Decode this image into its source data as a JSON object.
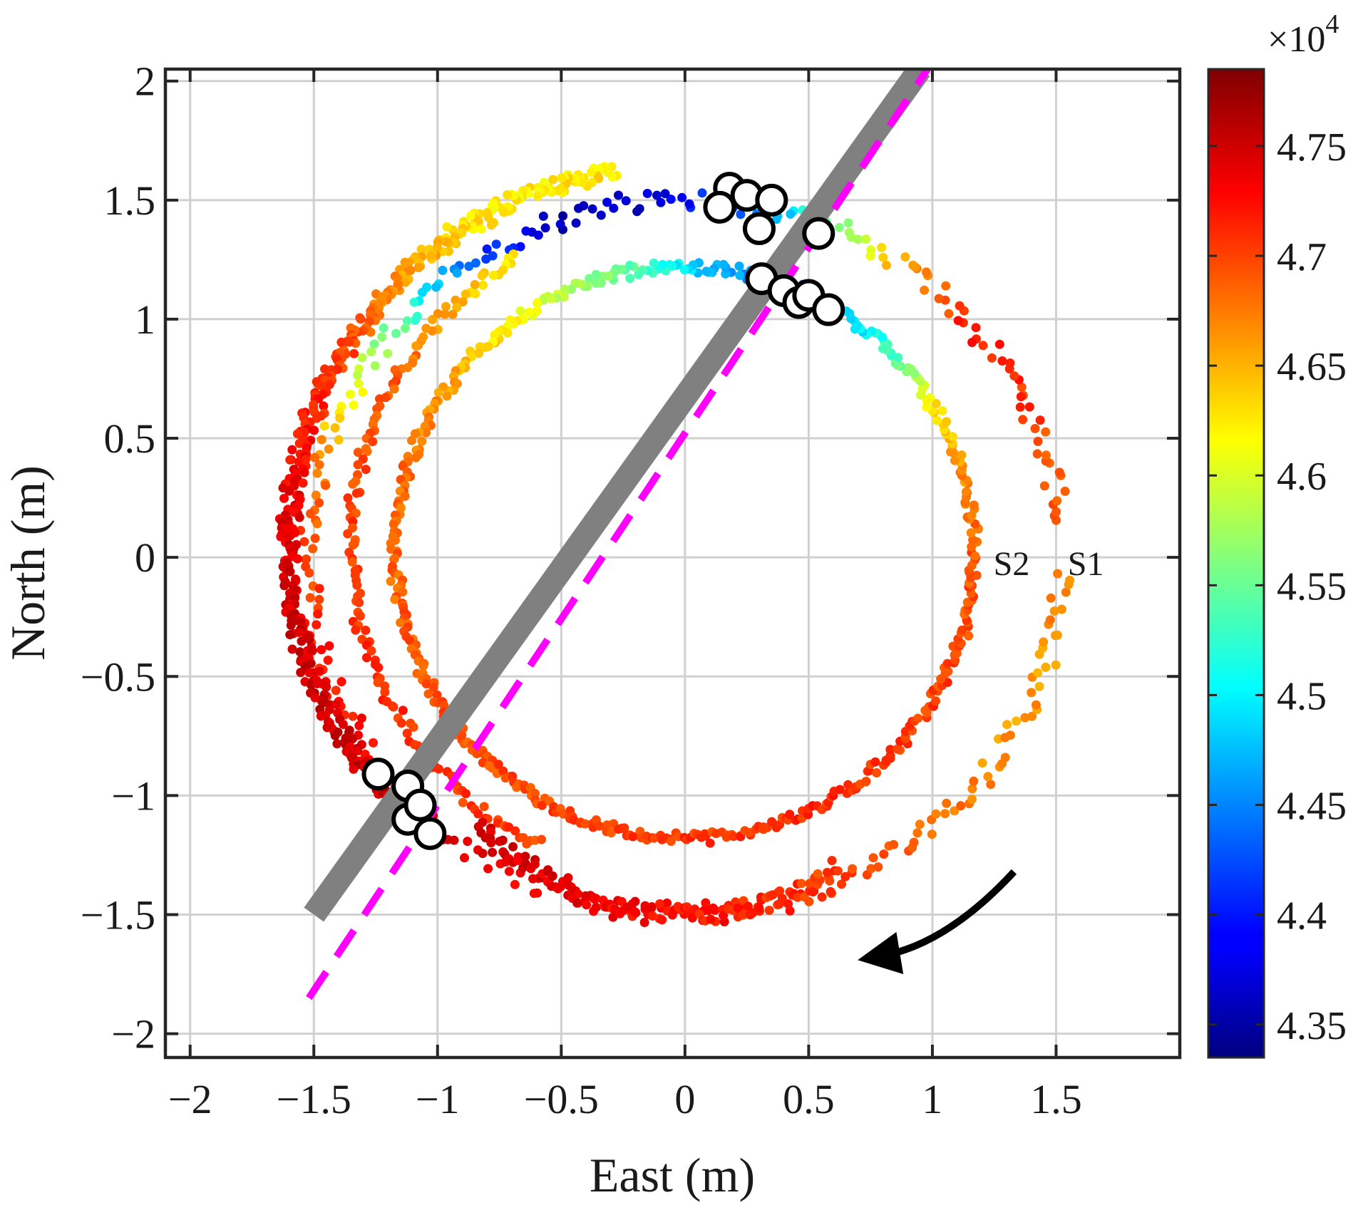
{
  "chart_data": {
    "type": "scatter",
    "xlabel": "East (m)",
    "ylabel": "North (m)",
    "xlim": [
      -2.1,
      2.0
    ],
    "ylim": [
      -2.1,
      2.05
    ],
    "xticks": [
      -2,
      -1.5,
      -1,
      -0.5,
      0,
      0.5,
      1,
      1.5
    ],
    "xtick_labels": [
      "−2",
      "−1.5",
      "−1",
      "−0.5",
      "0",
      "0.5",
      "1",
      "1.5"
    ],
    "yticks": [
      -2,
      -1.5,
      -1,
      -0.5,
      0,
      0.5,
      1,
      1.5,
      2
    ],
    "ytick_labels": [
      "−2",
      "−1.5",
      "−1",
      "−0.5",
      "0",
      "0.5",
      "1",
      "1.5",
      "2"
    ],
    "grid": true,
    "colormap": "jet",
    "colorbar": {
      "range": [
        43350,
        47850
      ],
      "ticks": [
        43500,
        44000,
        44500,
        45000,
        45500,
        46000,
        46500,
        47000,
        47500
      ],
      "tick_labels": [
        "4.35",
        "4.4",
        "4.45",
        "4.5",
        "4.55",
        "4.6",
        "4.65",
        "4.7",
        "4.75"
      ],
      "exponent_label": "×10",
      "exponent": "4"
    },
    "series": [
      {
        "id": "S1",
        "label": "S1",
        "shape": "ellipse",
        "center": [
          0.0,
          0.0
        ],
        "radius_x": 1.52,
        "radius_y": 1.5,
        "start_deg": 5,
        "end_deg": 358,
        "spread": 0.04,
        "count": 340,
        "color_stops": [
          [
            0,
            46800
          ],
          [
            40,
            47200
          ],
          [
            55,
            46500
          ],
          [
            68,
            45500
          ],
          [
            78,
            44500
          ],
          [
            88,
            44000
          ],
          [
            95,
            43700
          ],
          [
            110,
            43600
          ],
          [
            125,
            44300
          ],
          [
            140,
            45500
          ],
          [
            150,
            46000
          ],
          [
            165,
            46800
          ],
          [
            200,
            47200
          ],
          [
            235,
            47400
          ],
          [
            265,
            47300
          ],
          [
            290,
            47100
          ],
          [
            310,
            46800
          ],
          [
            335,
            46600
          ],
          [
            358,
            46700
          ]
        ]
      },
      {
        "id": "S2",
        "label": "S2",
        "shape": "ellipse",
        "center": [
          0.0,
          0.02
        ],
        "radius_x": 1.17,
        "radius_y": 1.2,
        "start_deg": 0,
        "end_deg": 360,
        "spread": 0.022,
        "count": 520,
        "color_stops": [
          [
            0,
            46900
          ],
          [
            15,
            46700
          ],
          [
            30,
            46300
          ],
          [
            40,
            45600
          ],
          [
            55,
            44800
          ],
          [
            70,
            44500
          ],
          [
            85,
            44700
          ],
          [
            100,
            45400
          ],
          [
            120,
            46000
          ],
          [
            140,
            46500
          ],
          [
            160,
            46800
          ],
          [
            200,
            46900
          ],
          [
            250,
            47000
          ],
          [
            300,
            47100
          ],
          [
            330,
            47000
          ],
          [
            360,
            46900
          ]
        ]
      },
      {
        "id": "outer-west",
        "label": "",
        "shape": "ellipse",
        "center": [
          0.0,
          0.05
        ],
        "radius_x": 1.6,
        "radius_y": 1.6,
        "start_deg": 100,
        "end_deg": 225,
        "spread": 0.035,
        "count": 420,
        "color_stops": [
          [
            100,
            46300
          ],
          [
            118,
            46200
          ],
          [
            130,
            46500
          ],
          [
            150,
            47000
          ],
          [
            175,
            47400
          ],
          [
            200,
            47500
          ],
          [
            225,
            47500
          ]
        ]
      },
      {
        "id": "arc-west-inner",
        "label": "",
        "shape": "ellipse",
        "center": [
          0.0,
          0.05
        ],
        "radius_x": 1.35,
        "radius_y": 1.4,
        "start_deg": 120,
        "end_deg": 245,
        "spread": 0.025,
        "count": 150,
        "color_stops": [
          [
            120,
            46200
          ],
          [
            150,
            46900
          ],
          [
            200,
            47100
          ],
          [
            245,
            47000
          ]
        ]
      },
      {
        "id": "arc-south",
        "label": "",
        "shape": "ellipse",
        "center": [
          0.0,
          0.0
        ],
        "radius_x": 1.25,
        "radius_y": 1.5,
        "start_deg": 228,
        "end_deg": 300,
        "spread": 0.035,
        "count": 130,
        "color_stops": [
          [
            228,
            47500
          ],
          [
            260,
            47300
          ],
          [
            300,
            47000
          ]
        ]
      }
    ],
    "highlight_points": [
      [
        0.18,
        1.55
      ],
      [
        0.25,
        1.52
      ],
      [
        0.35,
        1.5
      ],
      [
        0.14,
        1.47
      ],
      [
        0.3,
        1.38
      ],
      [
        0.54,
        1.36
      ],
      [
        0.31,
        1.17
      ],
      [
        0.4,
        1.12
      ],
      [
        0.46,
        1.07
      ],
      [
        0.5,
        1.1
      ],
      [
        0.58,
        1.04
      ],
      [
        -1.24,
        -0.91
      ],
      [
        -1.12,
        -0.96
      ],
      [
        -1.12,
        -1.1
      ],
      [
        -1.07,
        -1.04
      ],
      [
        -1.03,
        -1.16
      ]
    ],
    "reference_line": {
      "color": "#808080",
      "from": [
        -1.5,
        -1.5
      ],
      "to": [
        0.95,
        2.05
      ]
    },
    "dashed_line": {
      "color": "#ff00ff",
      "from": [
        -1.52,
        -1.85
      ],
      "to": [
        0.98,
        2.05
      ]
    },
    "direction_arrow": {
      "label": "direction",
      "from": [
        1.33,
        -1.32
      ],
      "to": [
        0.72,
        -1.7
      ]
    },
    "annotations": [
      {
        "text": "S2",
        "x": 1.32,
        "y": -0.02
      },
      {
        "text": "S1",
        "x": 1.62,
        "y": -0.02
      }
    ]
  }
}
